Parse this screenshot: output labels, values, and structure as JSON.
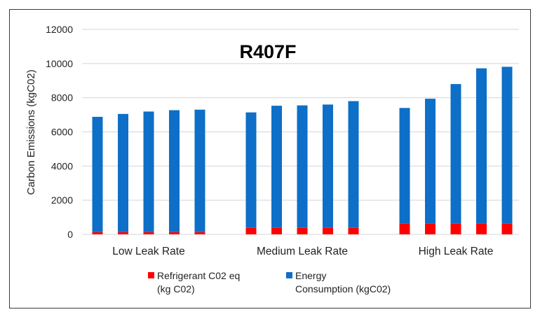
{
  "chart_data": {
    "type": "bar",
    "stacked": true,
    "title": "R407F",
    "ylabel": "Carbon Emissions (kgC02)",
    "xlabel": "",
    "ylim": [
      0,
      12000
    ],
    "yticks": [
      0,
      2000,
      4000,
      6000,
      8000,
      10000,
      12000
    ],
    "grid": true,
    "legend_position": "bottom",
    "groups": [
      "Low Leak Rate",
      "Medium Leak Rate",
      "High Leak Rate"
    ],
    "bars_per_group": 5,
    "series": [
      {
        "name": "Refrigerant C02 eq (kg C02)",
        "legend_lines": [
          "Refrigerant C02 eq",
          "(kg C02)"
        ],
        "color": "#ff0000",
        "values": [
          130,
          130,
          130,
          130,
          130,
          380,
          380,
          380,
          380,
          380,
          620,
          620,
          620,
          620,
          620
        ]
      },
      {
        "name": "Energy Consumption (kgC02)",
        "legend_lines": [
          "Energy",
          "Consumption (kgC02)"
        ],
        "color": "#0d6fc7",
        "values": [
          6750,
          6920,
          7060,
          7140,
          7170,
          6760,
          7150,
          7170,
          7220,
          7420,
          6780,
          7320,
          8180,
          9100,
          9190
        ]
      }
    ]
  },
  "colors": {
    "grid": "#d4d4d4",
    "frame": "#3a3a3a"
  }
}
